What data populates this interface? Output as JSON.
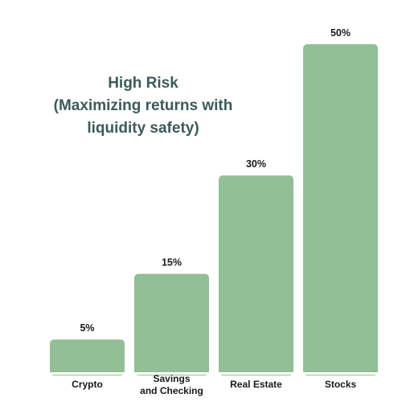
{
  "chart_data": {
    "type": "bar",
    "title": "High Risk",
    "subtitle_lines": [
      "(Maximizing returns with",
      "liquidity safety)"
    ],
    "categories": [
      "Crypto",
      "Savings and Checking",
      "Real Estate",
      "Stocks"
    ],
    "category_lines": [
      [
        "Crypto"
      ],
      [
        "Savings",
        "and Checking"
      ],
      [
        "Real Estate"
      ],
      [
        "Stocks"
      ]
    ],
    "values": [
      5,
      15,
      30,
      50
    ],
    "value_labels": [
      "5%",
      "15%",
      "30%",
      "50%"
    ],
    "ylim": [
      0,
      50
    ],
    "xlabel": "",
    "ylabel": "",
    "grid": false,
    "bar_color": "#93bf96",
    "title_color": "#3c5a5a"
  }
}
